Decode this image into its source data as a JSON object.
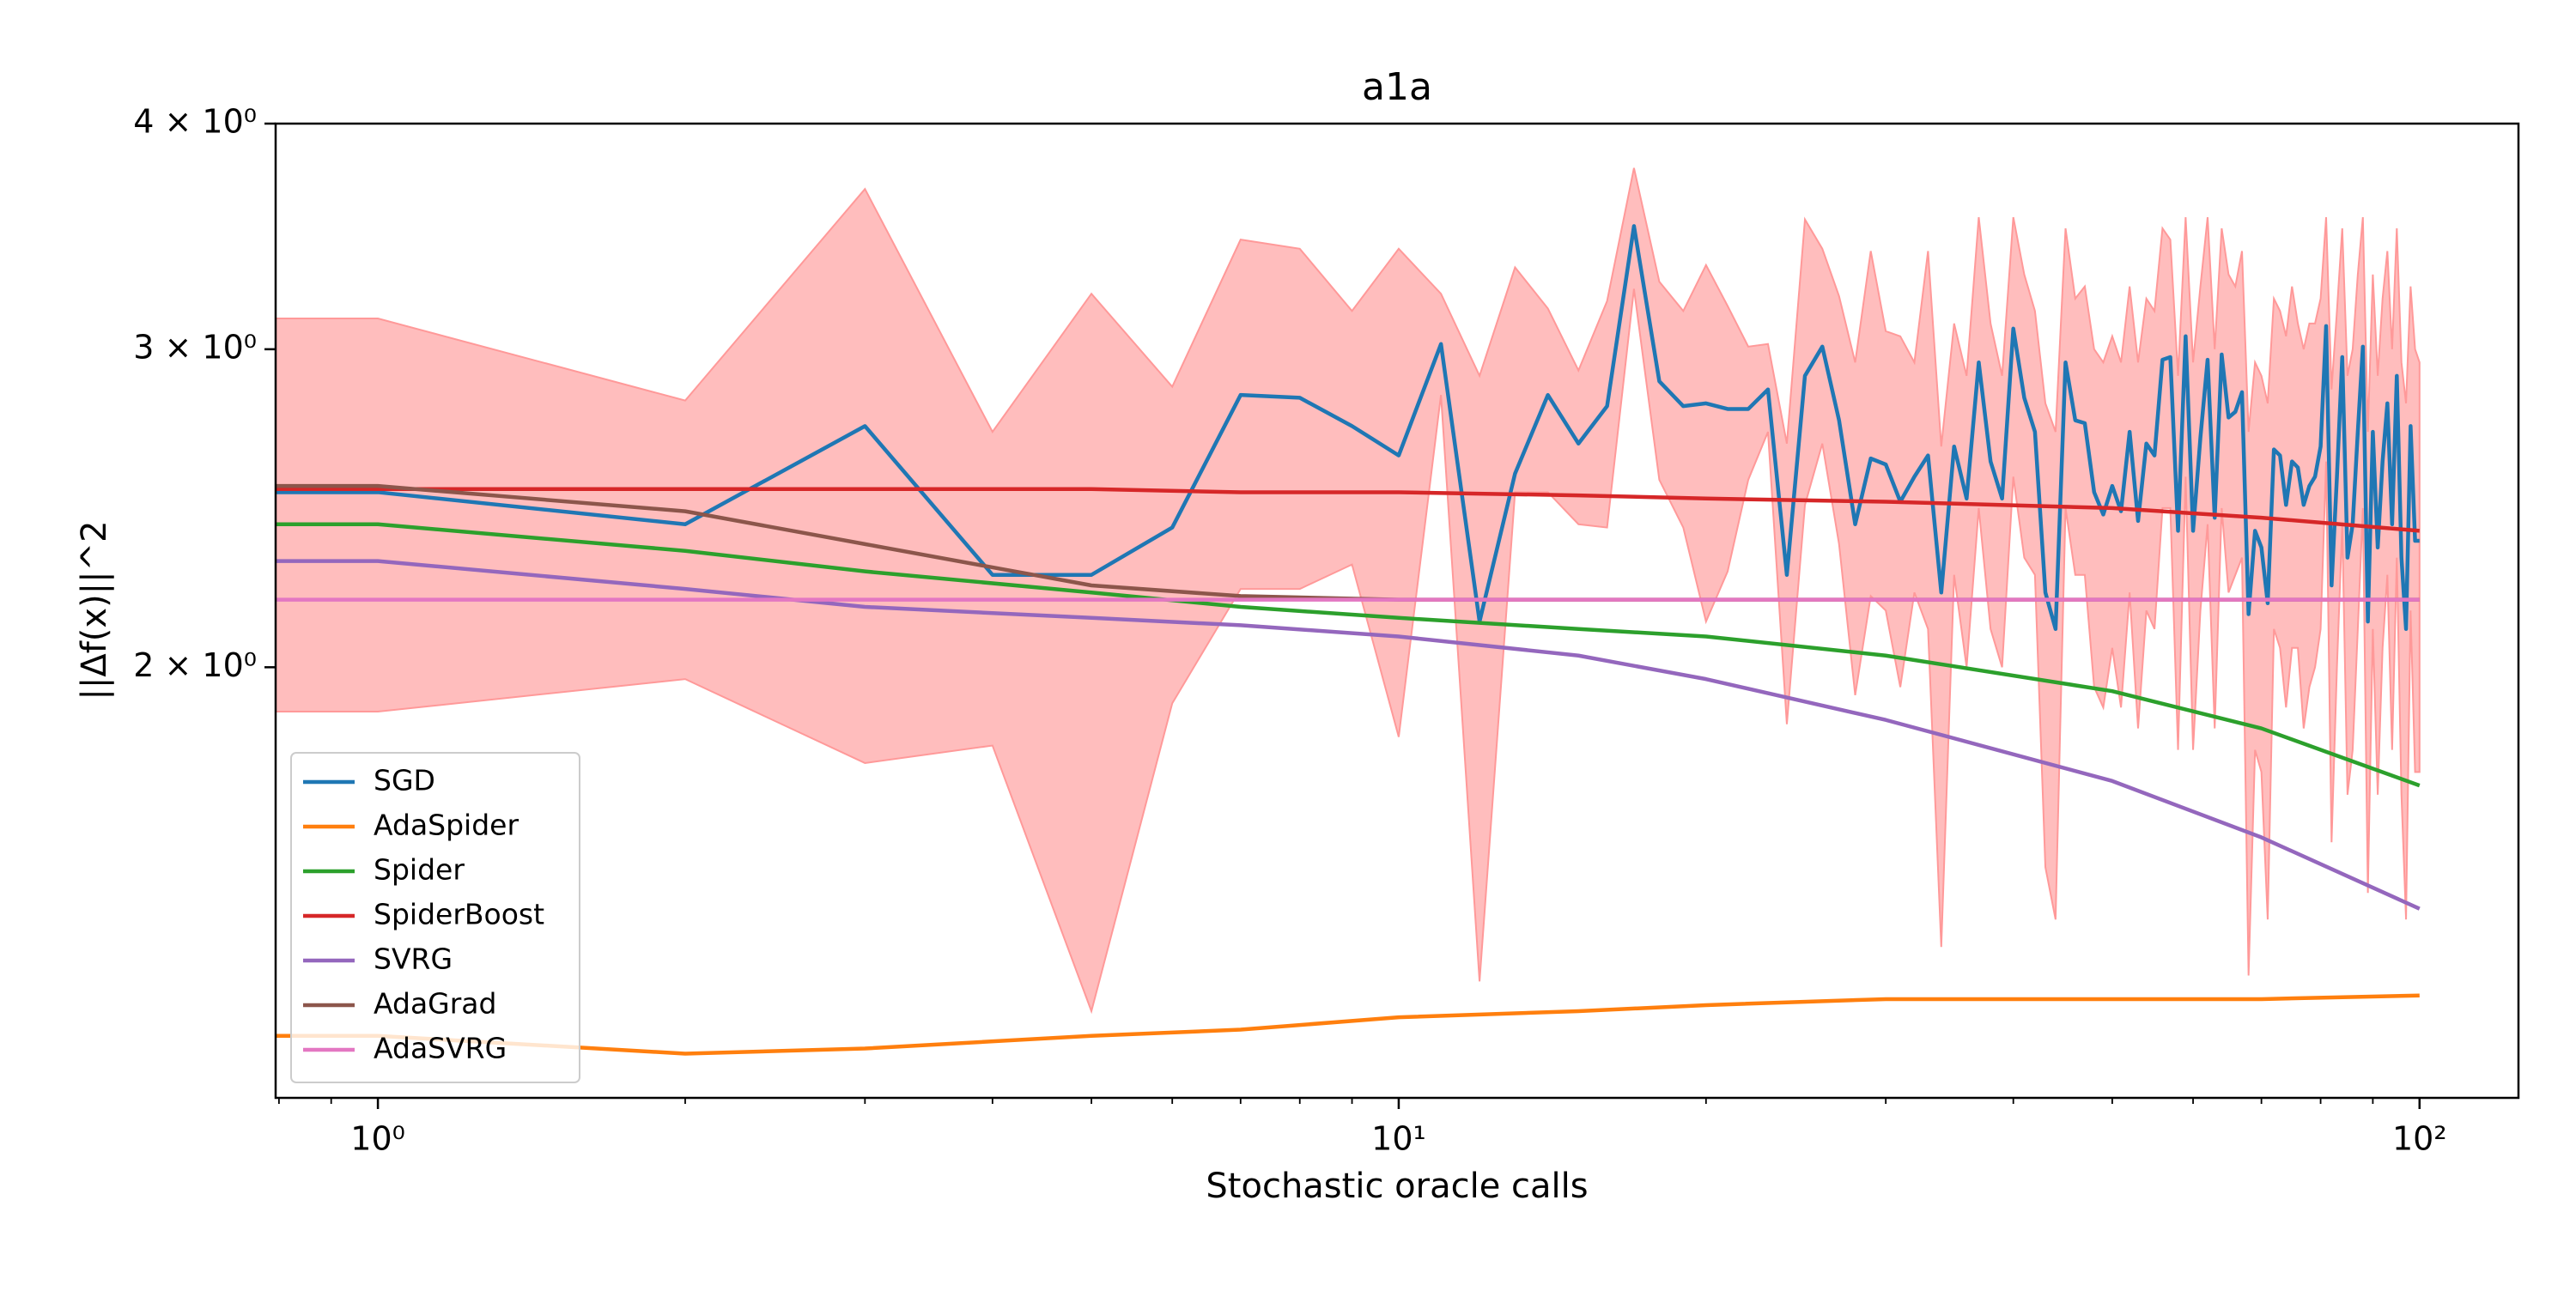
{
  "chart_data": {
    "type": "line",
    "title": "a1a",
    "x_label": "Stochastic oracle calls",
    "y_label": "||Δf(x)||^2",
    "xscale": "log",
    "yscale": "log",
    "xlim": [
      0.794,
      125
    ],
    "ylim": [
      1.155,
      4
    ],
    "xticks": [
      {
        "value": 1,
        "label": "10⁰"
      },
      {
        "value": 10,
        "label": "10¹"
      },
      {
        "value": 100,
        "label": "10²"
      }
    ],
    "xminorticks": [
      0.8,
      0.9,
      2,
      3,
      4,
      5,
      6,
      7,
      8,
      9,
      20,
      30,
      40,
      50,
      60,
      70,
      80,
      90
    ],
    "yticks": [
      {
        "value": 2,
        "label": "2 × 10⁰"
      },
      {
        "value": 3,
        "label": "3 × 10⁰"
      },
      {
        "value": 4,
        "label": "4 × 10⁰"
      }
    ],
    "legend": "lower left",
    "series": [
      {
        "name": "SGD",
        "color": "#1f77b4",
        "band_color": "#ff9999",
        "x": [
          0.5,
          1,
          2,
          3,
          4,
          5,
          6,
          7,
          8,
          9,
          10,
          11,
          12,
          13,
          14,
          15,
          16,
          17,
          18,
          19,
          20,
          21,
          22,
          23,
          24,
          25,
          26,
          27,
          28,
          29,
          30,
          31,
          32,
          33,
          34,
          35,
          36,
          37,
          38,
          39,
          40,
          41,
          42,
          43,
          44,
          45,
          46,
          47,
          48,
          49,
          50,
          51,
          52,
          53,
          54,
          55,
          56,
          57,
          58,
          59,
          60,
          61,
          62,
          63,
          64,
          65,
          66,
          67,
          68,
          69,
          70,
          71,
          72,
          73,
          74,
          75,
          76,
          77,
          78,
          79,
          80,
          81,
          82,
          83,
          84,
          85,
          86,
          87,
          88,
          89,
          90,
          91,
          92,
          93,
          94,
          95,
          96,
          97,
          98,
          99,
          100
        ],
        "values": [
          2.5,
          2.5,
          2.4,
          2.72,
          2.25,
          2.25,
          2.39,
          2.83,
          2.82,
          2.72,
          2.62,
          3.02,
          2.12,
          2.56,
          2.83,
          2.66,
          2.79,
          3.51,
          2.88,
          2.79,
          2.8,
          2.78,
          2.78,
          2.85,
          2.25,
          2.9,
          3.01,
          2.74,
          2.4,
          2.61,
          2.59,
          2.47,
          2.55,
          2.62,
          2.2,
          2.65,
          2.48,
          2.95,
          2.6,
          2.48,
          3.08,
          2.82,
          2.7,
          2.2,
          2.1,
          2.95,
          2.74,
          2.73,
          2.5,
          2.43,
          2.52,
          2.44,
          2.7,
          2.41,
          2.66,
          2.62,
          2.96,
          2.97,
          2.38,
          3.05,
          2.38,
          2.68,
          2.96,
          2.42,
          2.98,
          2.75,
          2.77,
          2.84,
          2.14,
          2.38,
          2.33,
          2.17,
          2.64,
          2.62,
          2.46,
          2.6,
          2.58,
          2.46,
          2.52,
          2.55,
          2.65,
          3.09,
          2.22,
          2.55,
          2.97,
          2.3,
          2.4,
          2.7,
          3.01,
          2.12,
          2.7,
          2.33,
          2.6,
          2.8,
          2.4,
          2.9,
          2.3,
          2.1,
          2.72,
          2.35,
          2.35
        ],
        "upper": [
          3.12,
          3.12,
          2.81,
          3.68,
          2.7,
          3.22,
          2.86,
          3.45,
          3.41,
          3.15,
          3.41,
          3.22,
          2.9,
          3.33,
          3.16,
          2.92,
          3.19,
          3.78,
          3.27,
          3.15,
          3.34,
          3.17,
          3.01,
          3.02,
          2.66,
          3.54,
          3.41,
          3.21,
          2.95,
          3.4,
          3.07,
          3.05,
          2.95,
          3.4,
          2.65,
          3.1,
          2.9,
          3.55,
          3.1,
          2.9,
          3.55,
          3.3,
          3.15,
          2.8,
          2.7,
          3.5,
          3.2,
          3.25,
          3.0,
          2.95,
          3.05,
          2.95,
          3.25,
          2.95,
          3.2,
          3.15,
          3.5,
          3.45,
          2.9,
          3.55,
          2.95,
          3.25,
          3.55,
          3.0,
          3.5,
          3.3,
          3.25,
          3.4,
          2.7,
          2.95,
          2.9,
          2.8,
          3.2,
          3.15,
          3.05,
          3.25,
          3.1,
          3.0,
          3.1,
          3.1,
          3.2,
          3.55,
          2.85,
          3.15,
          3.5,
          2.9,
          3.0,
          3.3,
          3.55,
          2.7,
          3.3,
          2.9,
          3.2,
          3.4,
          3.0,
          3.5,
          2.95,
          2.8,
          3.25,
          3.0,
          2.95
        ],
        "lower": [
          1.89,
          1.89,
          1.97,
          1.77,
          1.81,
          1.29,
          1.91,
          2.21,
          2.21,
          2.28,
          1.83,
          2.83,
          1.34,
          2.5,
          2.5,
          2.4,
          2.39,
          3.24,
          2.54,
          2.39,
          2.12,
          2.26,
          2.54,
          2.7,
          1.86,
          2.46,
          2.66,
          2.34,
          1.93,
          2.19,
          2.15,
          1.95,
          2.2,
          2.1,
          1.4,
          2.25,
          2.0,
          2.45,
          2.1,
          2.0,
          2.55,
          2.3,
          2.25,
          1.55,
          1.45,
          2.45,
          2.25,
          2.25,
          1.95,
          1.9,
          2.05,
          1.9,
          2.2,
          1.85,
          2.15,
          2.1,
          2.45,
          2.45,
          1.8,
          2.55,
          1.8,
          2.15,
          2.4,
          1.85,
          2.45,
          2.2,
          2.25,
          2.3,
          1.35,
          1.8,
          1.75,
          1.45,
          2.1,
          2.05,
          1.9,
          2.05,
          2.05,
          1.85,
          1.95,
          2.0,
          2.1,
          2.6,
          1.6,
          2.0,
          2.4,
          1.7,
          1.8,
          2.1,
          2.45,
          1.5,
          2.1,
          1.7,
          2.05,
          2.25,
          1.8,
          2.3,
          1.7,
          1.45,
          2.15,
          1.75,
          1.75
        ]
      },
      {
        "name": "AdaSpider",
        "color": "#ff7f0e",
        "x": [
          0.5,
          1,
          2,
          3,
          5,
          7,
          10,
          15,
          20,
          30,
          50,
          70,
          100
        ],
        "values": [
          1.25,
          1.25,
          1.222,
          1.23,
          1.25,
          1.26,
          1.28,
          1.29,
          1.3,
          1.31,
          1.31,
          1.31,
          1.316
        ]
      },
      {
        "name": "Spider",
        "color": "#2ca02c",
        "x": [
          0.5,
          1,
          2,
          3,
          5,
          7,
          10,
          15,
          20,
          30,
          50,
          70,
          100
        ],
        "values": [
          2.4,
          2.4,
          2.32,
          2.26,
          2.2,
          2.16,
          2.13,
          2.1,
          2.08,
          2.03,
          1.94,
          1.85,
          1.72
        ]
      },
      {
        "name": "SpiderBoost",
        "color": "#d62728",
        "x": [
          0.5,
          1,
          2,
          3,
          5,
          7,
          10,
          15,
          20,
          30,
          50,
          70,
          100
        ],
        "values": [
          2.51,
          2.51,
          2.51,
          2.51,
          2.51,
          2.5,
          2.5,
          2.49,
          2.48,
          2.47,
          2.45,
          2.42,
          2.38
        ]
      },
      {
        "name": "SVRG",
        "color": "#9467bd",
        "x": [
          0.5,
          1,
          2,
          3,
          5,
          7,
          10,
          15,
          20,
          30,
          50,
          70,
          100
        ],
        "values": [
          2.29,
          2.29,
          2.21,
          2.16,
          2.13,
          2.11,
          2.08,
          2.03,
          1.97,
          1.87,
          1.73,
          1.61,
          1.47
        ]
      },
      {
        "name": "AdaGrad",
        "color": "#8c564b",
        "x": [
          0.5,
          1,
          2,
          3,
          5,
          7,
          10,
          15,
          20,
          30,
          50,
          70,
          100
        ],
        "values": [
          2.52,
          2.52,
          2.44,
          2.34,
          2.22,
          2.19,
          2.18,
          2.18,
          2.18,
          2.18,
          2.18,
          2.18,
          2.18
        ]
      },
      {
        "name": "AdaSVRG",
        "color": "#e377c2",
        "x": [
          0.5,
          1,
          2,
          3,
          5,
          7,
          10,
          15,
          20,
          30,
          50,
          70,
          100
        ],
        "values": [
          2.18,
          2.18,
          2.18,
          2.18,
          2.18,
          2.18,
          2.18,
          2.18,
          2.18,
          2.18,
          2.18,
          2.18,
          2.18
        ]
      }
    ]
  }
}
